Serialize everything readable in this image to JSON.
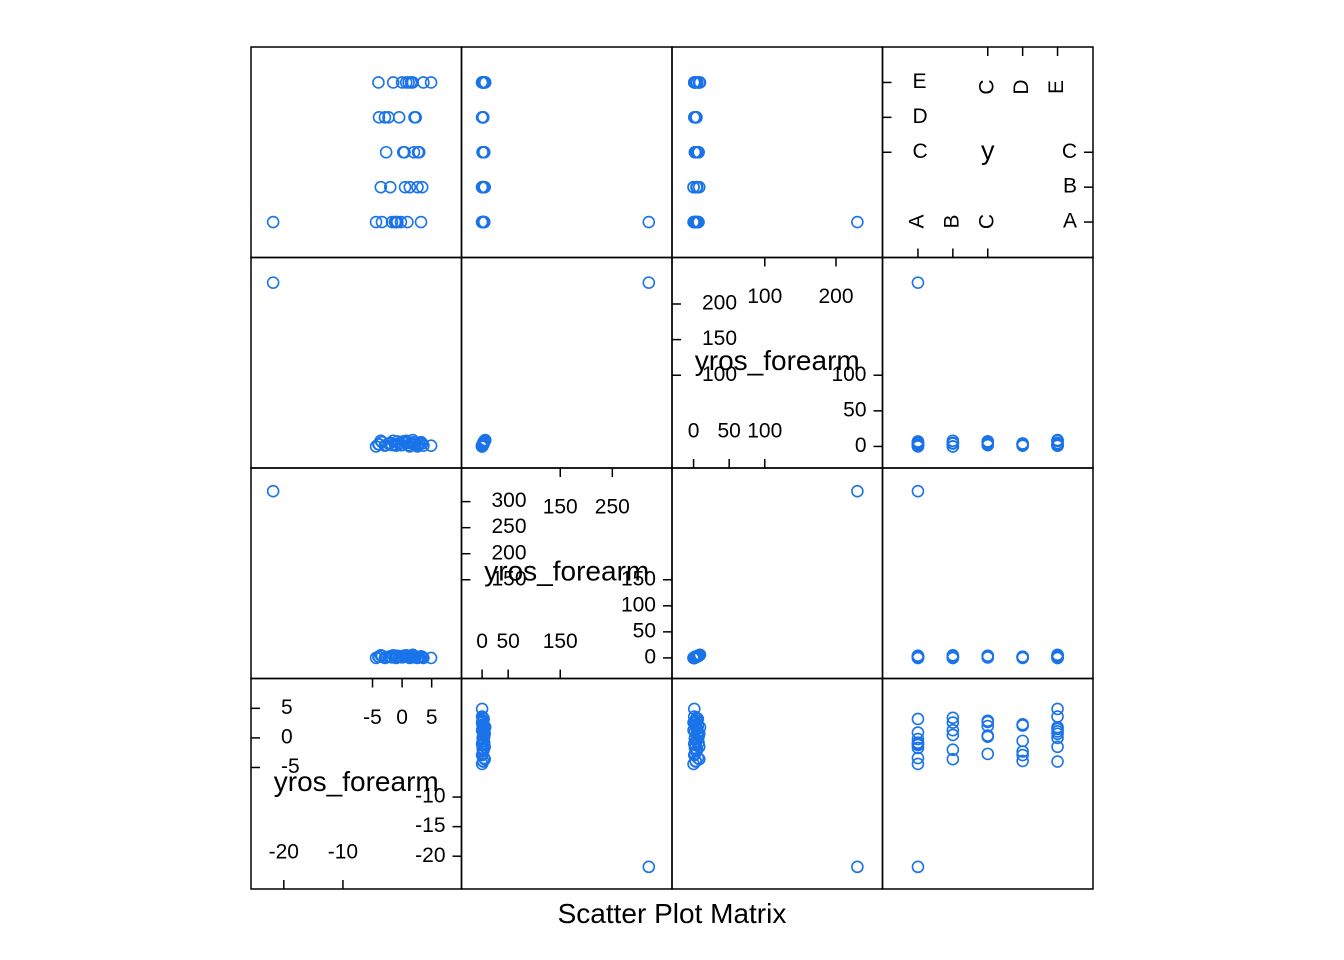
{
  "chart_data": {
    "type": "scatter",
    "subtype": "scatter-plot-matrix",
    "xlabel": "Scatter Plot Matrix",
    "marker": "open-circle",
    "point_color": "#1a73e8",
    "variables": [
      {
        "name": "yros_forearm",
        "kind": "numeric",
        "range": [
          -22.5,
          7
        ],
        "ticks_bottom": [
          -20,
          -10
        ],
        "ticks_top": [
          -5,
          0,
          5
        ],
        "ticks_left": [
          -5,
          0,
          5
        ],
        "ticks_right": [
          -20,
          -15,
          -10
        ]
      },
      {
        "name": "yros_forearm",
        "kind": "numeric",
        "range": [
          -5,
          330
        ],
        "ticks_bottom": [
          0,
          50,
          150
        ],
        "ticks_top": [
          150,
          250
        ],
        "ticks_left": [
          150,
          200,
          250,
          300
        ],
        "ticks_right": [
          0,
          50,
          100,
          150
        ]
      },
      {
        "name": "yros_forearm",
        "kind": "numeric",
        "range": [
          -5,
          240
        ],
        "ticks_bottom": [
          0,
          50,
          100
        ],
        "ticks_top": [
          100,
          200
        ],
        "ticks_left": [
          100,
          150,
          200
        ],
        "ticks_right": [
          0,
          50,
          100
        ]
      },
      {
        "name": "y",
        "kind": "factor",
        "levels": [
          "A",
          "B",
          "C",
          "D",
          "E"
        ],
        "ticks_bottom": [
          "A",
          "B",
          "C"
        ],
        "ticks_top": [
          "C",
          "D",
          "E"
        ],
        "ticks_left": [
          "C",
          "D",
          "E"
        ],
        "ticks_right": [
          "A",
          "B",
          "C"
        ]
      }
    ],
    "points": {
      "var1": [
        -21.8,
        -4.4,
        -4,
        -3.4,
        -2.7,
        -2,
        -1.5,
        -1,
        -0.5,
        0,
        0.4,
        0.9,
        1.3,
        1.8,
        2.3,
        2.7,
        3.2,
        3.6,
        -3.6,
        -2.3,
        -1.2,
        0.2,
        1.5,
        2.6,
        -3.9,
        -1.7,
        0.7,
        2,
        3.4,
        -2.9,
        -0.8,
        1.1,
        2.9,
        0.5,
        2.1,
        -0.2,
        4.9
      ],
      "var2": [
        320,
        0,
        2,
        4,
        1,
        3,
        5,
        0,
        2,
        1,
        4,
        3,
        0,
        6,
        2,
        1,
        3,
        0,
        5,
        2,
        1,
        4,
        3,
        0,
        2,
        1,
        5,
        3,
        2,
        0,
        4,
        1,
        2,
        3,
        1,
        2,
        0
      ],
      "var3": [
        230,
        0,
        3,
        6,
        2,
        5,
        8,
        1,
        4,
        2,
        7,
        5,
        0,
        9,
        3,
        2,
        6,
        1,
        8,
        4,
        3,
        7,
        5,
        0,
        3,
        2,
        8,
        6,
        4,
        1,
        7,
        2,
        4,
        5,
        3,
        2,
        1
      ],
      "var4": [
        1,
        1,
        5,
        1,
        3,
        2,
        5,
        1,
        4,
        5,
        3,
        1,
        2,
        5,
        4,
        3,
        1,
        5,
        2,
        4,
        1,
        3,
        5,
        2,
        4,
        1,
        5,
        3,
        2,
        4,
        1,
        5,
        3,
        2,
        4,
        1,
        5
      ]
    }
  }
}
